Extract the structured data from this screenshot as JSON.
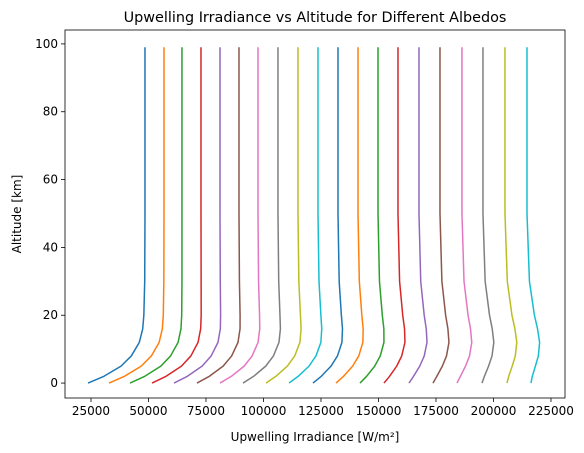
{
  "chart_data": {
    "type": "line",
    "title": "Upwelling Irradiance vs Altitude for Different Albedos",
    "xlabel": "Upwelling Irradiance [W/m²]",
    "ylabel": "Altitude [km]",
    "y": [
      0,
      2,
      5,
      8,
      12,
      16,
      20,
      30,
      50,
      99
    ],
    "series": [
      {
        "color": "#1f77b4",
        "values": [
          23700,
          30640,
          38070,
          42530,
          46000,
          47490,
          47980,
          48360,
          48480,
          48480
        ]
      },
      {
        "color": "#ff7f0e",
        "values": [
          32830,
          39580,
          46850,
          51240,
          54630,
          56020,
          56430,
          56680,
          56740,
          56740
        ]
      },
      {
        "color": "#2ca02c",
        "values": [
          41960,
          48400,
          55380,
          59610,
          62860,
          64130,
          64440,
          64560,
          64560,
          64560
        ]
      },
      {
        "color": "#d62728",
        "values": [
          51520,
          57660,
          64340,
          68430,
          71540,
          72690,
          72910,
          72890,
          72830,
          72830
        ]
      },
      {
        "color": "#9467bd",
        "values": [
          61090,
          66910,
          73310,
          77240,
          80210,
          81240,
          81360,
          81210,
          81090,
          81090
        ]
      },
      {
        "color": "#8c564b",
        "values": [
          71090,
          76480,
          82450,
          86160,
          88920,
          89810,
          89830,
          89540,
          89350,
          89350
        ]
      },
      {
        "color": "#e377c2",
        "values": [
          81090,
          86050,
          91600,
          95070,
          97640,
          98380,
          98290,
          97860,
          97610,
          97610
        ]
      },
      {
        "color": "#7f7f7f",
        "values": [
          91090,
          95740,
          100990,
          104320,
          106740,
          107360,
          107170,
          106620,
          106300,
          106300
        ]
      },
      {
        "color": "#bcbd22",
        "values": [
          101090,
          105430,
          110390,
          113570,
          115850,
          116350,
          116070,
          115380,
          115000,
          115000
        ]
      },
      {
        "color": "#17becf",
        "values": [
          111090,
          115130,
          119790,
          122820,
          124960,
          125340,
          124960,
          124140,
          123700,
          123700
        ]
      },
      {
        "color": "#1f77b4",
        "values": [
          121520,
          125130,
          129370,
          132170,
          134110,
          134350,
          133860,
          132910,
          132400,
          132400
        ]
      },
      {
        "color": "#ff7f0e",
        "values": [
          131520,
          134820,
          138770,
          141420,
          143220,
          143340,
          142760,
          141670,
          141100,
          141100
        ]
      },
      {
        "color": "#2ca02c",
        "values": [
          141960,
          144830,
          148360,
          150770,
          152380,
          152340,
          151660,
          150430,
          149800,
          149800
        ]
      },
      {
        "color": "#d62728",
        "values": [
          152390,
          154820,
          157920,
          160110,
          161510,
          161330,
          160540,
          159180,
          158480,
          158480
        ]
      },
      {
        "color": "#9467bd",
        "values": [
          163260,
          165260,
          167940,
          169900,
          171100,
          170770,
          169880,
          168370,
          167610,
          167610
        ]
      },
      {
        "color": "#8c564b",
        "values": [
          173700,
          175390,
          177770,
          179580,
          180640,
          180190,
          179200,
          177570,
          176740,
          176740
        ]
      },
      {
        "color": "#e377c2",
        "values": [
          184130,
          185630,
          187850,
          189590,
          190560,
          190020,
          188950,
          187190,
          186300,
          186300
        ]
      },
      {
        "color": "#7f7f7f",
        "values": [
          195000,
          196070,
          197870,
          199370,
          200150,
          199460,
          198280,
          196380,
          195430,
          195430
        ]
      },
      {
        "color": "#bcbd22",
        "values": [
          205870,
          206630,
          208140,
          209490,
          210130,
          209320,
          208040,
          206010,
          205000,
          205000
        ]
      },
      {
        "color": "#17becf",
        "values": [
          216300,
          216880,
          218220,
          219510,
          220060,
          219160,
          217800,
          215640,
          214570,
          214570
        ]
      }
    ],
    "xlim": [
      13700,
      231100
    ],
    "ylim": [
      -4.4,
      104.1
    ],
    "xticks": [
      25000,
      50000,
      75000,
      100000,
      125000,
      150000,
      175000,
      200000,
      225000
    ],
    "yticks": [
      0,
      20,
      40,
      60,
      80,
      100
    ]
  }
}
